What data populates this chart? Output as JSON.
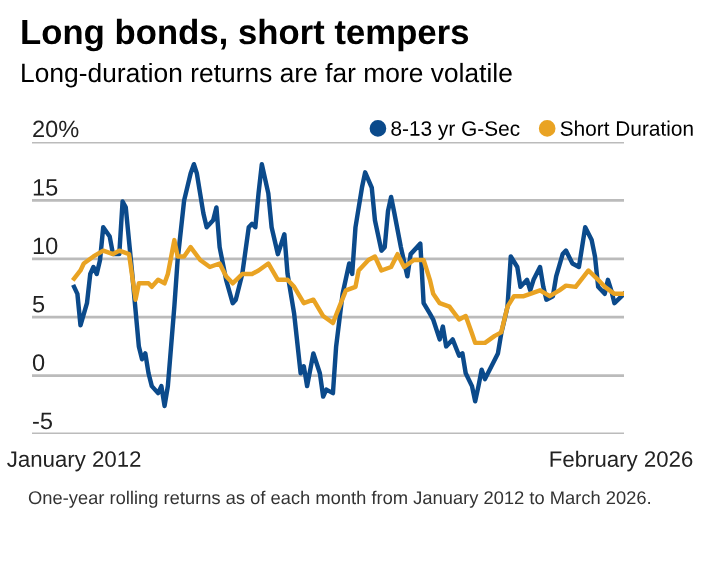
{
  "chart_data": {
    "type": "line",
    "title": "Long bonds, short tempers",
    "subtitle": "Long-duration returns are far more volatile",
    "annotations": [
      "One-year rolling returns as of each month from January 2012 to March 2026."
    ],
    "xlim": [
      "2010-12",
      "2026-03"
    ],
    "xticks": [
      {
        "value": "2012-01",
        "label": "January 2012"
      },
      {
        "value": "2026-02",
        "label": "February 2026"
      }
    ],
    "ylim": [
      -5,
      20
    ],
    "yticks": [
      {
        "value": -5,
        "label": "-5"
      },
      0,
      5,
      10,
      15,
      {
        "value": 20,
        "label": "20%"
      }
    ],
    "grid": "y",
    "legend": "top right",
    "marker": "none",
    "line_style": "solid",
    "series": [
      {
        "name": "8-13 yr G-Sec",
        "color": "#0b4a8b",
        "x": [
          "2012-01",
          "2012-02",
          "2012-03",
          "2012-05",
          "2012-06",
          "2012-07",
          "2012-08",
          "2012-09",
          "2012-10",
          "2012-12",
          "2013-01",
          "2013-03",
          "2013-04",
          "2013-05",
          "2013-07",
          "2013-09",
          "2013-10",
          "2013-11",
          "2013-12",
          "2014-01",
          "2014-03",
          "2014-04",
          "2014-05",
          "2014-06",
          "2014-08",
          "2014-09",
          "2014-11",
          "2015-01",
          "2015-02",
          "2015-03",
          "2015-05",
          "2015-06",
          "2015-08",
          "2015-09",
          "2015-10",
          "2015-12",
          "2016-02",
          "2016-03",
          "2016-05",
          "2016-07",
          "2016-08",
          "2016-09",
          "2016-10",
          "2016-11",
          "2017-01",
          "2017-02",
          "2017-04",
          "2017-06",
          "2017-07",
          "2017-09",
          "2017-11",
          "2017-12",
          "2018-01",
          "2018-03",
          "2018-05",
          "2018-06",
          "2018-07",
          "2018-09",
          "2018-10",
          "2018-12",
          "2019-02",
          "2019-03",
          "2019-04",
          "2019-06",
          "2019-07",
          "2019-09",
          "2019-10",
          "2019-12",
          "2020-01",
          "2020-02",
          "2020-03",
          "2020-04",
          "2020-06",
          "2020-08",
          "2020-09",
          "2020-11",
          "2020-12",
          "2021-01",
          "2021-03",
          "2021-04",
          "2021-06",
          "2021-07",
          "2021-08",
          "2021-10",
          "2021-12",
          "2022-01",
          "2022-02",
          "2022-04",
          "2022-05",
          "2022-06",
          "2022-07",
          "2022-08",
          "2022-10",
          "2022-12",
          "2023-01",
          "2023-03",
          "2023-04",
          "2023-06",
          "2023-07",
          "2023-09",
          "2023-10",
          "2023-11",
          "2024-01",
          "2024-02",
          "2024-03",
          "2024-05",
          "2024-06",
          "2024-08",
          "2024-09",
          "2024-11",
          "2025-01",
          "2025-03",
          "2025-05",
          "2025-06",
          "2025-07",
          "2025-09",
          "2025-10",
          "2025-11",
          "2025-12",
          "2026-03"
        ],
        "values": [
          7.6,
          7.0,
          4.3,
          6.2,
          8.7,
          9.3,
          8.7,
          9.9,
          12.7,
          11.9,
          10.4,
          10.4,
          14.9,
          14.4,
          8.7,
          2.5,
          1.4,
          1.9,
          0.2,
          -0.9,
          -1.5,
          -0.9,
          -2.6,
          -0.9,
          5.9,
          9.9,
          15.0,
          17.3,
          18.1,
          17.3,
          13.9,
          12.7,
          13.3,
          14.4,
          11.0,
          8.2,
          6.2,
          6.5,
          8.7,
          12.7,
          13.0,
          12.7,
          15.6,
          18.1,
          15.6,
          12.7,
          10.4,
          12.1,
          8.7,
          5.3,
          0.2,
          0.8,
          -0.9,
          1.9,
          0.2,
          -1.8,
          -1.2,
          -1.5,
          2.5,
          7.0,
          9.6,
          8.7,
          12.7,
          16.1,
          17.4,
          16.1,
          13.3,
          10.7,
          11.0,
          14.1,
          15.3,
          13.9,
          11.0,
          8.5,
          10.4,
          11.0,
          11.3,
          6.2,
          5.3,
          4.8,
          3.1,
          4.2,
          2.5,
          3.1,
          1.7,
          1.9,
          0.2,
          -0.9,
          -2.2,
          -0.9,
          0.5,
          -0.3,
          0.8,
          1.9,
          3.6,
          5.9,
          10.2,
          9.3,
          7.6,
          8.2,
          7.3,
          8.2,
          9.3,
          7.6,
          6.5,
          6.8,
          8.5,
          10.4,
          10.7,
          9.6,
          9.3,
          12.7,
          11.6,
          10.2,
          7.6,
          7.0,
          8.2,
          7.3,
          6.2,
          7.0
        ]
      },
      {
        "name": "Short Duration",
        "color": "#e9a323",
        "x": [
          "2012-01",
          "2012-03",
          "2012-04",
          "2012-07",
          "2012-10",
          "2013-01",
          "2013-03",
          "2013-06",
          "2013-08",
          "2013-09",
          "2013-12",
          "2014-01",
          "2014-03",
          "2014-05",
          "2014-06",
          "2014-08",
          "2014-09",
          "2014-11",
          "2015-01",
          "2015-04",
          "2015-07",
          "2015-10",
          "2015-12",
          "2016-02",
          "2016-05",
          "2016-08",
          "2016-10",
          "2017-01",
          "2017-04",
          "2017-07",
          "2017-09",
          "2017-12",
          "2018-03",
          "2018-06",
          "2018-09",
          "2018-11",
          "2019-01",
          "2019-04",
          "2019-05",
          "2019-08",
          "2019-10",
          "2019-12",
          "2020-03",
          "2020-05",
          "2020-07",
          "2020-10",
          "2021-01",
          "2021-03",
          "2021-04",
          "2021-06",
          "2021-09",
          "2021-12",
          "2022-02",
          "2022-04",
          "2022-05",
          "2022-08",
          "2022-11",
          "2023-01",
          "2023-03",
          "2023-05",
          "2023-08",
          "2023-10",
          "2024-01",
          "2024-04",
          "2024-07",
          "2024-09",
          "2024-12",
          "2025-04",
          "2025-07",
          "2025-09",
          "2025-12",
          "2026-03"
        ],
        "values": [
          8.3,
          9.0,
          9.6,
          10.2,
          10.7,
          10.4,
          10.7,
          10.4,
          6.5,
          7.9,
          7.9,
          7.6,
          8.2,
          7.9,
          8.7,
          11.6,
          10.2,
          10.2,
          11.0,
          9.9,
          9.3,
          9.6,
          8.5,
          7.9,
          8.7,
          8.7,
          9.0,
          9.6,
          8.2,
          8.2,
          7.6,
          6.2,
          6.5,
          5.1,
          4.5,
          5.9,
          7.3,
          7.6,
          9.0,
          9.9,
          10.2,
          9.0,
          9.3,
          10.4,
          9.3,
          9.9,
          9.9,
          8.2,
          7.0,
          6.2,
          5.9,
          4.8,
          5.1,
          3.6,
          2.8,
          2.8,
          3.4,
          3.7,
          5.9,
          6.8,
          6.8,
          7.0,
          7.3,
          6.8,
          7.3,
          7.7,
          7.6,
          9.0,
          8.2,
          7.6,
          7.0,
          7.0
        ]
      }
    ]
  }
}
